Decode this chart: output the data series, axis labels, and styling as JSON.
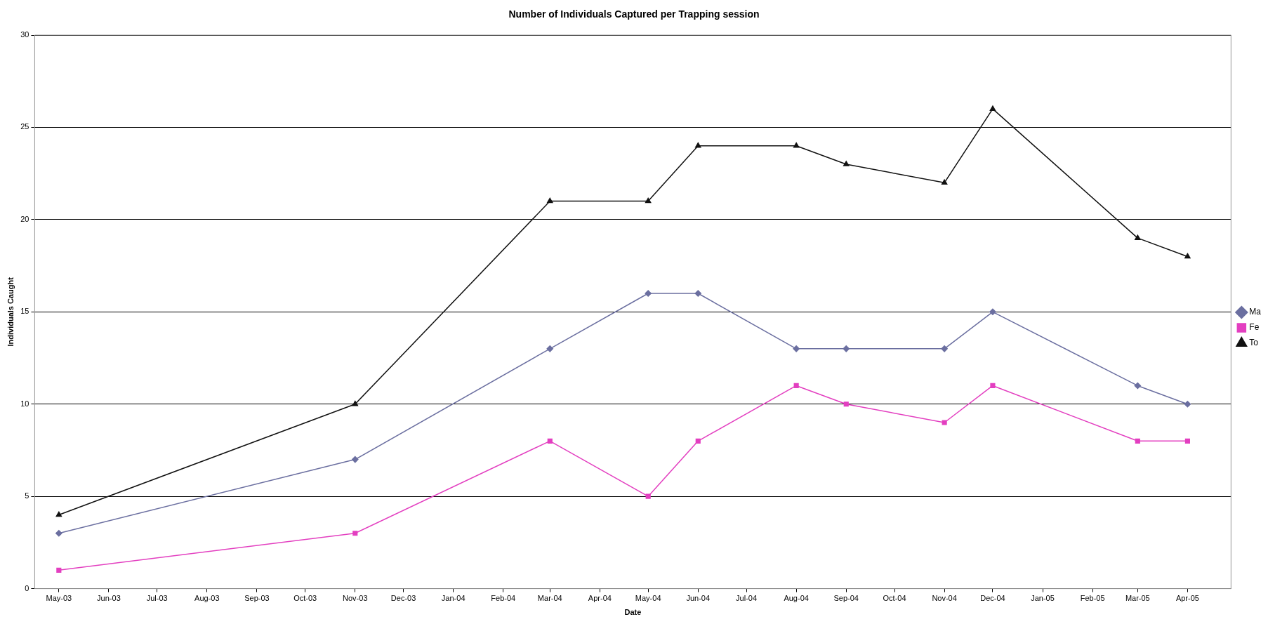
{
  "chart_data": {
    "type": "line",
    "title": "Number of Individuals Captured per Trapping session",
    "xlabel": "Date",
    "ylabel": "Individuals Caught",
    "x": [
      "2003-05",
      "2003-11",
      "2004-03",
      "2004-05",
      "2004-06",
      "2004-08",
      "2004-09",
      "2004-11",
      "2004-12",
      "2005-03",
      "2005-04"
    ],
    "series": [
      {
        "name": "Ma",
        "color": "#6b6fa0",
        "marker": "diamond",
        "values": [
          3,
          7,
          13,
          16,
          16,
          13,
          13,
          13,
          15,
          11,
          10
        ]
      },
      {
        "name": "Fe",
        "color": "#e33fc0",
        "marker": "square",
        "values": [
          1,
          3,
          8,
          5,
          8,
          11,
          10,
          9,
          11,
          8,
          8
        ]
      },
      {
        "name": "To",
        "color": "#111111",
        "marker": "triangle",
        "values": [
          4,
          10,
          21,
          21,
          24,
          24,
          23,
          22,
          26,
          19,
          18
        ]
      }
    ],
    "xlim": [
      "2003-04-16",
      "2005-04-28"
    ],
    "xticks": [
      {
        "value": "2003-05",
        "label": "May-03"
      },
      {
        "value": "2003-06",
        "label": "Jun-03"
      },
      {
        "value": "2003-07",
        "label": "Jul-03"
      },
      {
        "value": "2003-08",
        "label": "Aug-03"
      },
      {
        "value": "2003-09",
        "label": "Sep-03"
      },
      {
        "value": "2003-10",
        "label": "Oct-03"
      },
      {
        "value": "2003-11",
        "label": "Nov-03"
      },
      {
        "value": "2003-12",
        "label": "Dec-03"
      },
      {
        "value": "2004-01",
        "label": "Jan-04"
      },
      {
        "value": "2004-02",
        "label": "Feb-04"
      },
      {
        "value": "2004-03",
        "label": "Mar-04"
      },
      {
        "value": "2004-04",
        "label": "Apr-04"
      },
      {
        "value": "2004-05",
        "label": "May-04"
      },
      {
        "value": "2004-06",
        "label": "Jun-04"
      },
      {
        "value": "2004-07",
        "label": "Jul-04"
      },
      {
        "value": "2004-08",
        "label": "Aug-04"
      },
      {
        "value": "2004-09",
        "label": "Sep-04"
      },
      {
        "value": "2004-10",
        "label": "Oct-04"
      },
      {
        "value": "2004-11",
        "label": "Nov-04"
      },
      {
        "value": "2004-12",
        "label": "Dec-04"
      },
      {
        "value": "2005-01",
        "label": "Jan-05"
      },
      {
        "value": "2005-02",
        "label": "Feb-05"
      },
      {
        "value": "2005-03",
        "label": "Mar-05"
      },
      {
        "value": "2005-04",
        "label": "Apr-05"
      }
    ],
    "ylim": [
      0,
      30
    ],
    "yticks": [
      0,
      5,
      10,
      15,
      20,
      25,
      30
    ],
    "grid": "y",
    "legend": "right",
    "line_style": "solid"
  }
}
